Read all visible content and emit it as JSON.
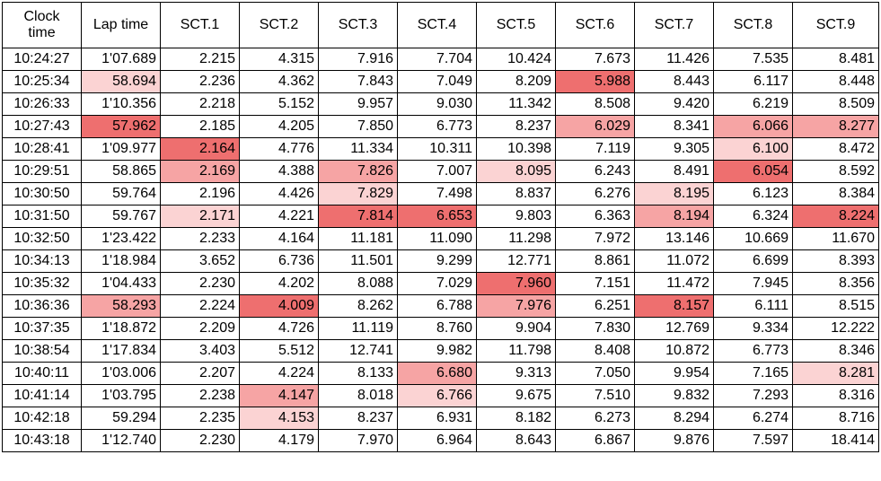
{
  "columns": [
    "Clock time",
    "Lap time",
    "SCT.1",
    "SCT.2",
    "SCT.3",
    "SCT.4",
    "SCT.5",
    "SCT.6",
    "SCT.7",
    "SCT.8",
    "SCT.9"
  ],
  "highlight_colors": {
    "light": "#fbd3d3",
    "medium": "#f6a4a4",
    "strong": "#ee6f6f"
  },
  "rows": [
    {
      "cells": [
        "10:24:27",
        "1'07.689",
        "2.215",
        "4.315",
        "7.916",
        "7.704",
        "10.424",
        "7.673",
        "11.426",
        "7.535",
        "8.481"
      ],
      "hl": [
        0,
        0,
        0,
        0,
        0,
        0,
        0,
        0,
        0,
        0,
        0
      ]
    },
    {
      "cells": [
        "10:25:34",
        "58.694",
        "2.236",
        "4.362",
        "7.843",
        "7.049",
        "8.209",
        "5.988",
        "8.443",
        "6.117",
        "8.448"
      ],
      "hl": [
        0,
        1,
        0,
        0,
        0,
        0,
        0,
        3,
        0,
        0,
        0
      ]
    },
    {
      "cells": [
        "10:26:33",
        "1'10.356",
        "2.218",
        "5.152",
        "9.957",
        "9.030",
        "11.342",
        "8.508",
        "9.420",
        "6.219",
        "8.509"
      ],
      "hl": [
        0,
        0,
        0,
        0,
        0,
        0,
        0,
        0,
        0,
        0,
        0
      ]
    },
    {
      "cells": [
        "10:27:43",
        "57.962",
        "2.185",
        "4.205",
        "7.850",
        "6.773",
        "8.237",
        "6.029",
        "8.341",
        "6.066",
        "8.277"
      ],
      "hl": [
        0,
        3,
        0,
        0,
        0,
        0,
        0,
        2,
        0,
        2,
        2
      ]
    },
    {
      "cells": [
        "10:28:41",
        "1'09.977",
        "2.164",
        "4.776",
        "11.334",
        "10.311",
        "10.398",
        "7.119",
        "9.305",
        "6.100",
        "8.472"
      ],
      "hl": [
        0,
        0,
        3,
        0,
        0,
        0,
        0,
        0,
        0,
        1,
        0
      ]
    },
    {
      "cells": [
        "10:29:51",
        "58.865",
        "2.169",
        "4.388",
        "7.826",
        "7.007",
        "8.095",
        "6.243",
        "8.491",
        "6.054",
        "8.592"
      ],
      "hl": [
        0,
        0,
        2,
        0,
        2,
        0,
        1,
        0,
        0,
        3,
        0
      ]
    },
    {
      "cells": [
        "10:30:50",
        "59.764",
        "2.196",
        "4.426",
        "7.829",
        "7.498",
        "8.837",
        "6.276",
        "8.195",
        "6.123",
        "8.384"
      ],
      "hl": [
        0,
        0,
        0,
        0,
        1,
        0,
        0,
        0,
        1,
        0,
        0
      ]
    },
    {
      "cells": [
        "10:31:50",
        "59.767",
        "2.171",
        "4.221",
        "7.814",
        "6.653",
        "9.803",
        "6.363",
        "8.194",
        "6.324",
        "8.224"
      ],
      "hl": [
        0,
        0,
        1,
        0,
        3,
        3,
        0,
        0,
        2,
        0,
        3
      ]
    },
    {
      "cells": [
        "10:32:50",
        "1'23.422",
        "2.233",
        "4.164",
        "11.181",
        "11.090",
        "11.298",
        "7.972",
        "13.146",
        "10.669",
        "11.670"
      ],
      "hl": [
        0,
        0,
        0,
        0,
        0,
        0,
        0,
        0,
        0,
        0,
        0
      ]
    },
    {
      "cells": [
        "10:34:13",
        "1'18.984",
        "3.652",
        "6.736",
        "11.501",
        "9.299",
        "12.771",
        "8.861",
        "11.072",
        "6.699",
        "8.393"
      ],
      "hl": [
        0,
        0,
        0,
        0,
        0,
        0,
        0,
        0,
        0,
        0,
        0
      ]
    },
    {
      "cells": [
        "10:35:32",
        "1'04.433",
        "2.230",
        "4.202",
        "8.088",
        "7.029",
        "7.960",
        "7.151",
        "11.472",
        "7.945",
        "8.356"
      ],
      "hl": [
        0,
        0,
        0,
        0,
        0,
        0,
        3,
        0,
        0,
        0,
        0
      ]
    },
    {
      "cells": [
        "10:36:36",
        "58.293",
        "2.224",
        "4.009",
        "8.262",
        "6.788",
        "7.976",
        "6.251",
        "8.157",
        "6.111",
        "8.515"
      ],
      "hl": [
        0,
        2,
        0,
        3,
        0,
        0,
        2,
        0,
        3,
        0,
        0
      ]
    },
    {
      "cells": [
        "10:37:35",
        "1'18.872",
        "2.209",
        "4.726",
        "11.119",
        "8.760",
        "9.904",
        "7.830",
        "12.769",
        "9.334",
        "12.222"
      ],
      "hl": [
        0,
        0,
        0,
        0,
        0,
        0,
        0,
        0,
        0,
        0,
        0
      ]
    },
    {
      "cells": [
        "10:38:54",
        "1'17.834",
        "3.403",
        "5.512",
        "12.741",
        "9.982",
        "11.798",
        "8.408",
        "10.872",
        "6.773",
        "8.346"
      ],
      "hl": [
        0,
        0,
        0,
        0,
        0,
        0,
        0,
        0,
        0,
        0,
        0
      ]
    },
    {
      "cells": [
        "10:40:11",
        "1'03.006",
        "2.207",
        "4.224",
        "8.133",
        "6.680",
        "9.313",
        "7.050",
        "9.954",
        "7.165",
        "8.281"
      ],
      "hl": [
        0,
        0,
        0,
        0,
        0,
        2,
        0,
        0,
        0,
        0,
        1
      ]
    },
    {
      "cells": [
        "10:41:14",
        "1'03.795",
        "2.238",
        "4.147",
        "8.018",
        "6.766",
        "9.675",
        "7.510",
        "9.832",
        "7.293",
        "8.316"
      ],
      "hl": [
        0,
        0,
        0,
        2,
        0,
        1,
        0,
        0,
        0,
        0,
        0
      ]
    },
    {
      "cells": [
        "10:42:18",
        "59.294",
        "2.235",
        "4.153",
        "8.237",
        "6.931",
        "8.182",
        "6.273",
        "8.294",
        "6.274",
        "8.716"
      ],
      "hl": [
        0,
        0,
        0,
        1,
        0,
        0,
        0,
        0,
        0,
        0,
        0
      ]
    },
    {
      "cells": [
        "10:43:18",
        "1'12.740",
        "2.230",
        "4.179",
        "7.970",
        "6.964",
        "8.643",
        "6.867",
        "9.876",
        "7.597",
        "18.414"
      ],
      "hl": [
        0,
        0,
        0,
        0,
        0,
        0,
        0,
        0,
        0,
        0,
        0
      ]
    }
  ]
}
